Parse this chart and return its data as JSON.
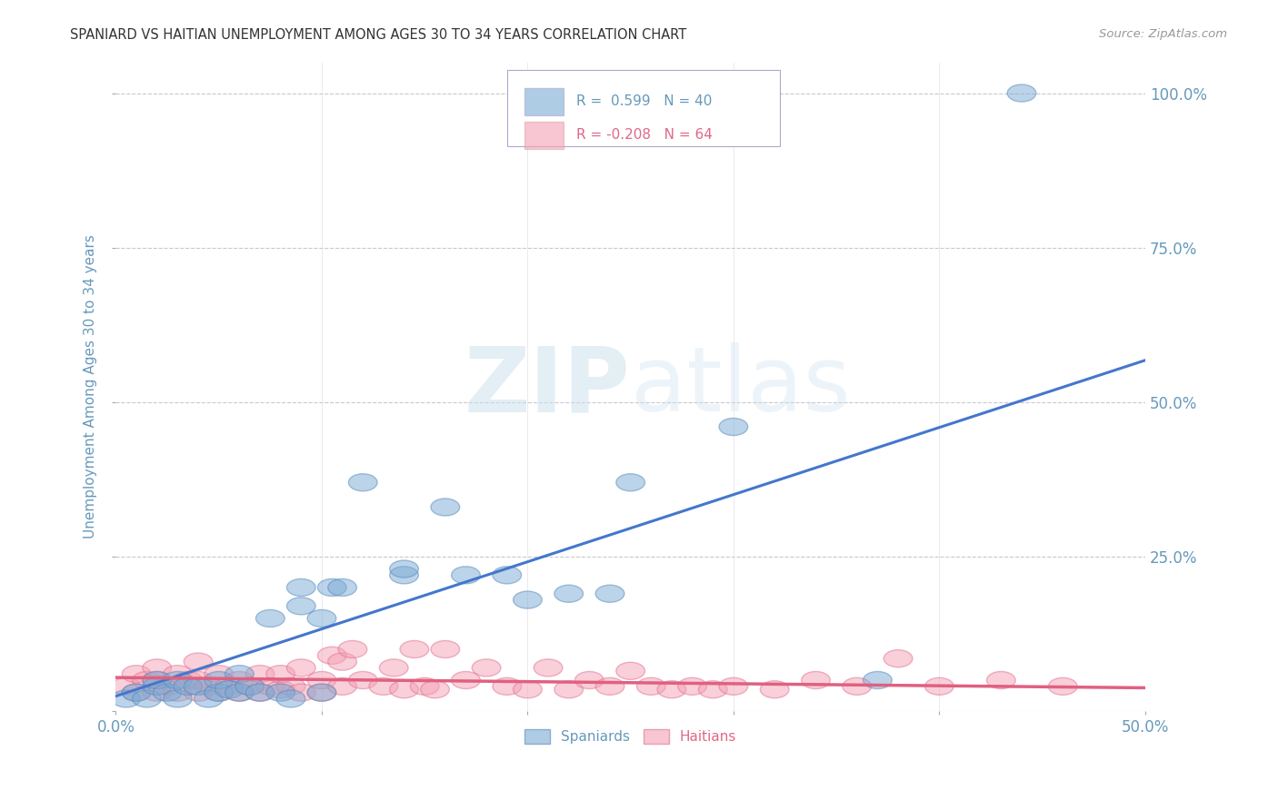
{
  "title": "SPANIARD VS HAITIAN UNEMPLOYMENT AMONG AGES 30 TO 34 YEARS CORRELATION CHART",
  "source": "Source: ZipAtlas.com",
  "ylabel": "Unemployment Among Ages 30 to 34 years",
  "xlim": [
    0.0,
    0.5
  ],
  "ylim": [
    0.0,
    1.05
  ],
  "xticks": [
    0.0,
    0.1,
    0.2,
    0.3,
    0.4,
    0.5
  ],
  "xticklabels_show": [
    "0.0%",
    "",
    "",
    "",
    "",
    "50.0%"
  ],
  "yticks": [
    0.0,
    0.25,
    0.5,
    0.75,
    1.0
  ],
  "yticklabels_right": [
    "",
    "25.0%",
    "50.0%",
    "75.0%",
    "100.0%"
  ],
  "grid_color": "#c8c8d0",
  "background_color": "#ffffff",
  "legend_blue_r": "0.599",
  "legend_blue_n": "40",
  "legend_pink_r": "-0.208",
  "legend_pink_n": "64",
  "blue_color": "#7aaad4",
  "pink_color": "#f4a0b5",
  "blue_edge_color": "#5588bb",
  "pink_edge_color": "#e07090",
  "blue_line_color": "#4477cc",
  "pink_line_color": "#e06080",
  "title_color": "#333333",
  "tick_label_color": "#6699bb",
  "ylabel_color": "#6699bb",
  "watermark_color": "#cce0ee",
  "spaniards_x": [
    0.005,
    0.01,
    0.015,
    0.02,
    0.02,
    0.025,
    0.03,
    0.03,
    0.035,
    0.04,
    0.045,
    0.05,
    0.05,
    0.055,
    0.06,
    0.06,
    0.065,
    0.07,
    0.075,
    0.08,
    0.085,
    0.09,
    0.09,
    0.1,
    0.1,
    0.105,
    0.11,
    0.12,
    0.14,
    0.14,
    0.16,
    0.17,
    0.19,
    0.2,
    0.22,
    0.24,
    0.25,
    0.3,
    0.37,
    0.44
  ],
  "spaniards_y": [
    0.02,
    0.03,
    0.02,
    0.04,
    0.05,
    0.03,
    0.02,
    0.05,
    0.04,
    0.04,
    0.02,
    0.03,
    0.05,
    0.035,
    0.03,
    0.06,
    0.04,
    0.03,
    0.15,
    0.03,
    0.02,
    0.17,
    0.2,
    0.03,
    0.15,
    0.2,
    0.2,
    0.37,
    0.22,
    0.23,
    0.33,
    0.22,
    0.22,
    0.18,
    0.19,
    0.19,
    0.37,
    0.46,
    0.05,
    1.0
  ],
  "haitians_x": [
    0.005,
    0.01,
    0.01,
    0.015,
    0.02,
    0.02,
    0.02,
    0.025,
    0.03,
    0.03,
    0.035,
    0.04,
    0.04,
    0.04,
    0.045,
    0.05,
    0.05,
    0.055,
    0.06,
    0.06,
    0.065,
    0.07,
    0.07,
    0.075,
    0.08,
    0.08,
    0.085,
    0.09,
    0.09,
    0.1,
    0.1,
    0.105,
    0.11,
    0.11,
    0.115,
    0.12,
    0.13,
    0.135,
    0.14,
    0.145,
    0.15,
    0.155,
    0.16,
    0.17,
    0.18,
    0.19,
    0.2,
    0.21,
    0.22,
    0.23,
    0.24,
    0.25,
    0.26,
    0.27,
    0.28,
    0.29,
    0.3,
    0.32,
    0.34,
    0.36,
    0.38,
    0.4,
    0.43,
    0.46
  ],
  "haitians_y": [
    0.04,
    0.03,
    0.06,
    0.05,
    0.03,
    0.05,
    0.07,
    0.04,
    0.03,
    0.06,
    0.05,
    0.03,
    0.05,
    0.08,
    0.04,
    0.03,
    0.06,
    0.04,
    0.03,
    0.05,
    0.04,
    0.03,
    0.06,
    0.04,
    0.035,
    0.06,
    0.04,
    0.03,
    0.07,
    0.03,
    0.05,
    0.09,
    0.04,
    0.08,
    0.1,
    0.05,
    0.04,
    0.07,
    0.035,
    0.1,
    0.04,
    0.035,
    0.1,
    0.05,
    0.07,
    0.04,
    0.035,
    0.07,
    0.035,
    0.05,
    0.04,
    0.065,
    0.04,
    0.035,
    0.04,
    0.035,
    0.04,
    0.035,
    0.05,
    0.04,
    0.085,
    0.04,
    0.05,
    0.04
  ]
}
